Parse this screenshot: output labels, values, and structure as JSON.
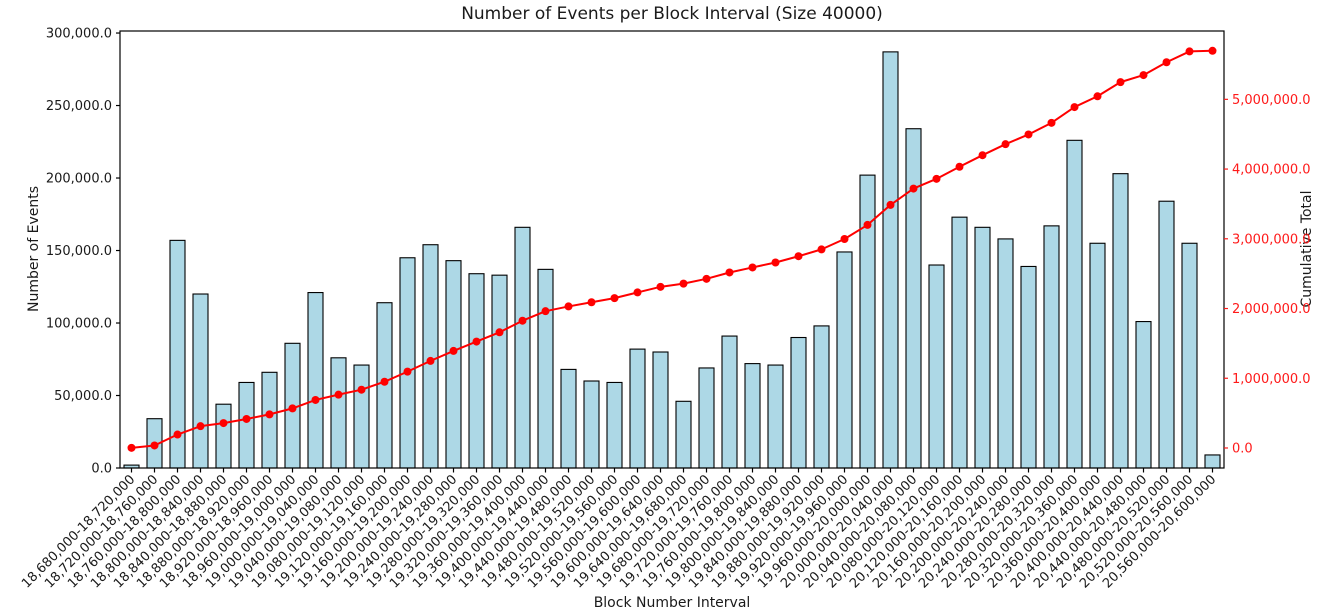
{
  "chart_data": {
    "type": "bar",
    "title": "Number of Events per Block Interval (Size 40000)",
    "xlabel": "Block Number Interval",
    "ylabel_left": "Number of Events",
    "ylabel_right": "Cumulative Total",
    "grid": false,
    "legend": "none",
    "colors": {
      "bar_fill": "#add8e6",
      "bar_edge": "#000000",
      "line": "#ff0000",
      "marker": "#ff0000",
      "right_axis": "#ff1a1a",
      "axis": "#000000",
      "background": "#ffffff"
    },
    "categories": [
      "18,680,000-18,720,000",
      "18,720,000-18,760,000",
      "18,760,000-18,800,000",
      "18,800,000-18,840,000",
      "18,840,000-18,880,000",
      "18,880,000-18,920,000",
      "18,920,000-18,960,000",
      "18,960,000-19,000,000",
      "19,000,000-19,040,000",
      "19,040,000-19,080,000",
      "19,080,000-19,120,000",
      "19,120,000-19,160,000",
      "19,160,000-19,200,000",
      "19,200,000-19,240,000",
      "19,240,000-19,280,000",
      "19,280,000-19,320,000",
      "19,320,000-19,360,000",
      "19,360,000-19,400,000",
      "19,400,000-19,440,000",
      "19,440,000-19,480,000",
      "19,480,000-19,520,000",
      "19,520,000-19,560,000",
      "19,560,000-19,600,000",
      "19,600,000-19,640,000",
      "19,640,000-19,680,000",
      "19,680,000-19,720,000",
      "19,720,000-19,760,000",
      "19,760,000-19,800,000",
      "19,800,000-19,840,000",
      "19,840,000-19,880,000",
      "19,880,000-19,920,000",
      "19,920,000-19,960,000",
      "19,960,000-20,000,000",
      "20,000,000-20,040,000",
      "20,040,000-20,080,000",
      "20,080,000-20,120,000",
      "20,120,000-20,160,000",
      "20,160,000-20,200,000",
      "20,200,000-20,240,000",
      "20,240,000-20,280,000",
      "20,280,000-20,320,000",
      "20,320,000-20,360,000",
      "20,360,000-20,400,000",
      "20,400,000-20,440,000",
      "20,440,000-20,480,000",
      "20,480,000-20,520,000",
      "20,520,000-20,560,000",
      "20,560,000-20,600,000"
    ],
    "series": [
      {
        "name": "Number of Events",
        "type": "bar",
        "axis": "left",
        "values": [
          2000,
          34000,
          157000,
          120000,
          44000,
          59000,
          66000,
          86000,
          121000,
          76000,
          71000,
          114000,
          145000,
          154000,
          143000,
          134000,
          133000,
          166000,
          137000,
          68000,
          60000,
          59000,
          82000,
          80000,
          46000,
          69000,
          91000,
          72000,
          71000,
          90000,
          98000,
          149000,
          202000,
          287000,
          234000,
          140000,
          173000,
          166000,
          158000,
          139000,
          167000,
          226000,
          155000,
          203000,
          101000,
          184000,
          155000,
          9000
        ]
      },
      {
        "name": "Cumulative Total",
        "type": "line",
        "axis": "right",
        "values": [
          2000,
          36000,
          193000,
          313000,
          357000,
          416000,
          482000,
          568000,
          689000,
          765000,
          836000,
          950000,
          1095000,
          1249000,
          1392000,
          1526000,
          1659000,
          1825000,
          1962000,
          2030000,
          2090000,
          2149000,
          2231000,
          2311000,
          2357000,
          2426000,
          2517000,
          2589000,
          2660000,
          2750000,
          2848000,
          2997000,
          3199000,
          3486000,
          3720000,
          3860000,
          4033000,
          4199000,
          4357000,
          4496000,
          4663000,
          4889000,
          5044000,
          5247000,
          5348000,
          5532000,
          5687000,
          5696000
        ]
      }
    ],
    "y_left": {
      "range": [
        0,
        301400
      ],
      "tick_values": [
        0,
        50000,
        100000,
        150000,
        200000,
        250000,
        300000
      ],
      "tick_labels": [
        "0.0",
        "50,000.0",
        "100,000.0",
        "150,000.0",
        "200,000.0",
        "250,000.0",
        "300,000.0"
      ]
    },
    "y_right": {
      "range": [
        -287000,
        5980000
      ],
      "tick_values": [
        0,
        1000000,
        2000000,
        3000000,
        4000000,
        5000000
      ],
      "tick_labels": [
        "0.0",
        "1,000,000.0",
        "2,000,000.0",
        "3,000,000.0",
        "4,000,000.0",
        "5,000,000.0"
      ]
    }
  }
}
